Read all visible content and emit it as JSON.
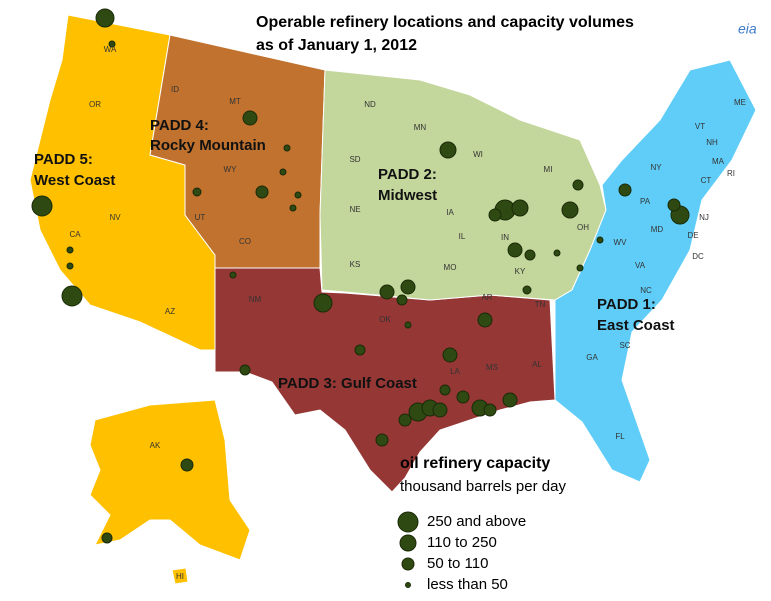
{
  "title": {
    "line1": "Operable refinery locations and capacity volumes",
    "line2": "as of January 1, 2012"
  },
  "logo": "eia",
  "padds": [
    {
      "label": "PADD 1:",
      "region": "East Coast"
    },
    {
      "label": "PADD 2:",
      "region": "Midwest"
    },
    {
      "label": "PADD 3:  Gulf Coast"
    },
    {
      "label": "PADD 4:",
      "region": "Rocky Mountain"
    },
    {
      "label": "PADD 5:",
      "region": "West Coast"
    }
  ],
  "states": [
    "WA",
    "OR",
    "CA",
    "NV",
    "AZ",
    "ID",
    "MT",
    "WY",
    "UT",
    "CO",
    "NM",
    "ND",
    "SD",
    "NE",
    "KS",
    "OK",
    "MN",
    "WI",
    "MI",
    "IA",
    "IL",
    "IN",
    "OH",
    "MO",
    "KY",
    "TN",
    "AR",
    "LA",
    "MS",
    "AL",
    "ME",
    "VT",
    "NH",
    "MA",
    "RI",
    "CT",
    "NY",
    "PA",
    "NJ",
    "DE",
    "MD",
    "DC",
    "WV",
    "VA",
    "NC",
    "SC",
    "GA",
    "FL",
    "AK",
    "HI"
  ],
  "legend": {
    "title": "oil refinery capacity",
    "subtitle": "thousand barrels per day",
    "items": [
      "250 and above",
      "110 to 250",
      "50 to 110",
      "less than 50"
    ]
  }
}
